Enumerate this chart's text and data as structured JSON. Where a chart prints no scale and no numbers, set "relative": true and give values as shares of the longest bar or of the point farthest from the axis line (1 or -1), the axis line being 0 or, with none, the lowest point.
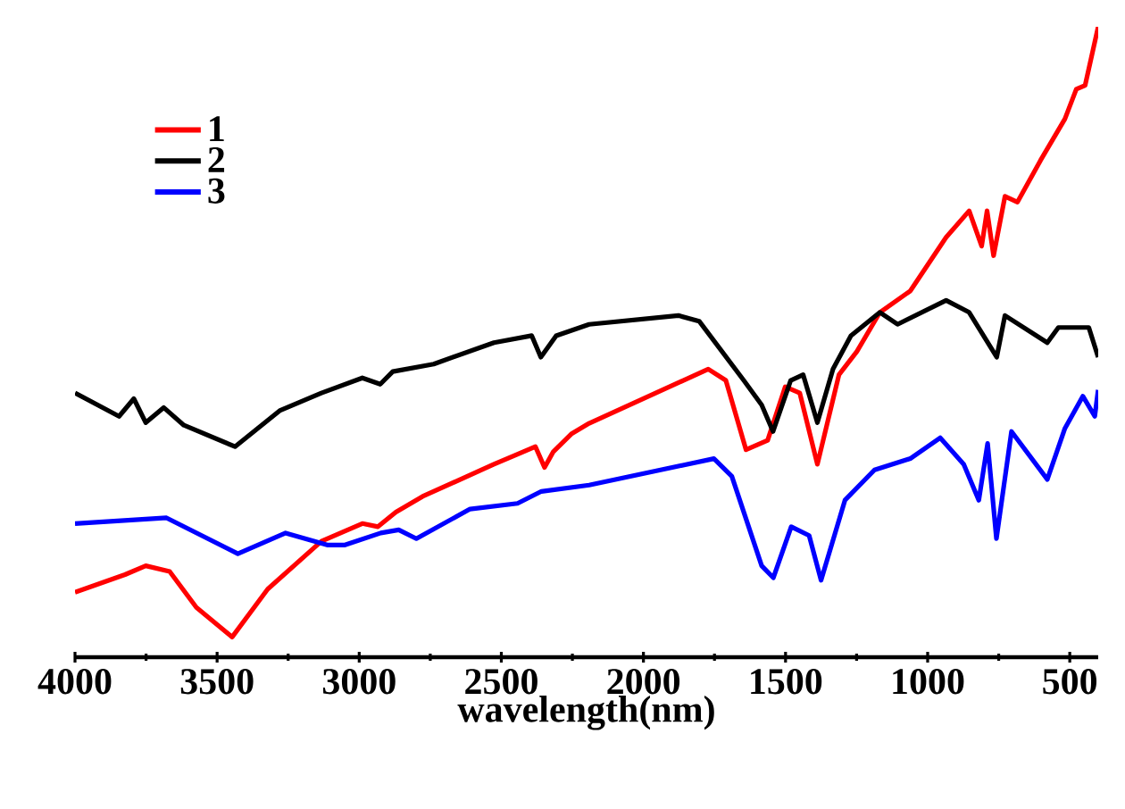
{
  "chart_data": {
    "type": "line",
    "xlabel": "wavelength(nm)",
    "relative": true,
    "legend": "top left",
    "xlim": [
      4000,
      400
    ],
    "xticks": [
      4000,
      3500,
      3000,
      2500,
      2000,
      1500,
      1000,
      500
    ],
    "series": [
      {
        "name": "1",
        "color": "#ff0000",
        "x": [
          4000,
          3824,
          3751,
          3667,
          3573,
          3447,
          3322,
          3133,
          2989,
          2934,
          2871,
          2777,
          2526,
          2380,
          2348,
          2317,
          2254,
          2191,
          1772,
          1710,
          1639,
          1563,
          1501,
          1450,
          1388,
          1312,
          1249,
          1168,
          1061,
          935,
          854,
          810,
          791,
          768,
          728,
          684,
          603,
          517,
          477,
          446,
          400
        ],
        "values": [
          0.103,
          0.131,
          0.145,
          0.136,
          0.079,
          0.032,
          0.108,
          0.184,
          0.212,
          0.207,
          0.23,
          0.255,
          0.306,
          0.334,
          0.301,
          0.326,
          0.354,
          0.371,
          0.457,
          0.439,
          0.329,
          0.344,
          0.429,
          0.419,
          0.306,
          0.448,
          0.485,
          0.547,
          0.581,
          0.666,
          0.708,
          0.652,
          0.708,
          0.637,
          0.731,
          0.722,
          0.788,
          0.854,
          0.901,
          0.907,
          1
        ]
      },
      {
        "name": "2",
        "color": "#000000",
        "x": [
          4000,
          3845,
          3793,
          3751,
          3688,
          3617,
          3437,
          3280,
          3133,
          2989,
          2926,
          2882,
          2738,
          2526,
          2393,
          2361,
          2307,
          2191,
          1877,
          1804,
          1647,
          1584,
          1544,
          1482,
          1438,
          1388,
          1333,
          1270,
          1168,
          1106,
          935,
          854,
          757,
          728,
          579,
          540,
          433,
          400
        ],
        "values": [
          0.419,
          0.382,
          0.41,
          0.372,
          0.396,
          0.368,
          0.334,
          0.391,
          0.419,
          0.443,
          0.433,
          0.453,
          0.465,
          0.499,
          0.51,
          0.476,
          0.51,
          0.528,
          0.542,
          0.533,
          0.439,
          0.4,
          0.358,
          0.439,
          0.448,
          0.372,
          0.457,
          0.51,
          0.547,
          0.528,
          0.566,
          0.547,
          0.476,
          0.542,
          0.499,
          0.523,
          0.523,
          0.476
        ]
      },
      {
        "name": "3",
        "color": "#0000ff",
        "x": [
          4000,
          3678,
          3427,
          3259,
          3113,
          3050,
          2924,
          2861,
          2799,
          2610,
          2443,
          2359,
          2191,
          1752,
          1689,
          1584,
          1543,
          1480,
          1417,
          1375,
          1291,
          1187,
          1061,
          956,
          873,
          820,
          789,
          758,
          705,
          579,
          517,
          454,
          412,
          400
        ],
        "values": [
          0.212,
          0.221,
          0.164,
          0.197,
          0.178,
          0.178,
          0.197,
          0.202,
          0.188,
          0.235,
          0.244,
          0.263,
          0.273,
          0.315,
          0.287,
          0.145,
          0.126,
          0.207,
          0.193,
          0.122,
          0.249,
          0.297,
          0.315,
          0.348,
          0.306,
          0.249,
          0.339,
          0.188,
          0.358,
          0.282,
          0.363,
          0.414,
          0.382,
          0.424
        ]
      }
    ]
  }
}
